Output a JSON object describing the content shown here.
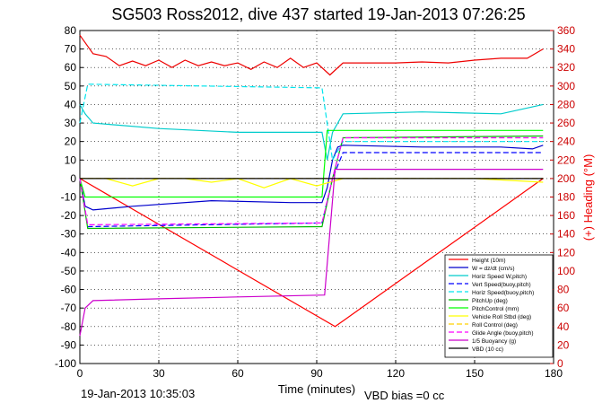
{
  "chart_data": {
    "type": "line",
    "title": "SG503 Ross2012, dive 437 started 19-Jan-2013 07:26:25",
    "xlabel": "Time (minutes)",
    "ylabel_right": "(+) Heading (°M)",
    "xlim": [
      0,
      180
    ],
    "ylim_left": [
      -100,
      80
    ],
    "ylim_right": [
      0,
      360
    ],
    "x_ticks": [
      "0",
      "30",
      "60",
      "90",
      "120",
      "150",
      "180"
    ],
    "y_ticks_left": [
      "80",
      "70",
      "60",
      "50",
      "40",
      "30",
      "20",
      "10",
      "0",
      "-10",
      "-20",
      "-30",
      "-40",
      "-50",
      "-60",
      "-70",
      "-80",
      "-90",
      "-100"
    ],
    "y_ticks_right": [
      "360",
      "340",
      "320",
      "300",
      "280",
      "260",
      "240",
      "220",
      "200",
      "180",
      "160",
      "140",
      "120",
      "100",
      "80",
      "60",
      "40",
      "20",
      "0"
    ],
    "grid": true,
    "legend_position": "bottom-right",
    "footer_left": "19-Jan-2013 10:35:03",
    "footer_right": "VBD bias =0 cc",
    "colors": {
      "height": "#ff0000",
      "w": "#0000cc",
      "horz_w": "#00cccc",
      "vert_buoy": "#0000ff",
      "horz_buoy": "#00e5ee",
      "pitch_up": "#00bb00",
      "pitch_control": "#00ff00",
      "vehicle_roll": "#ffff00",
      "roll_control": "#ffd000",
      "glide_angle": "#ff00ff",
      "buoyancy": "#cc00cc",
      "vbd": "#000000",
      "heading": "#ee0000"
    },
    "series": [
      {
        "name": "Height (10m)",
        "key": "height",
        "style": "solid",
        "x": [
          0,
          97,
          176
        ],
        "y": [
          0,
          -80,
          0
        ]
      },
      {
        "name": "W = dz/dt (cm/s)",
        "key": "w",
        "style": "solid",
        "x": [
          0,
          2,
          5,
          20,
          50,
          80,
          92,
          94,
          96,
          98,
          100,
          130,
          160,
          172,
          176
        ],
        "y": [
          0,
          -15,
          -17,
          -15,
          -12,
          -13,
          -13,
          -5,
          10,
          17,
          18,
          17,
          17,
          16,
          18
        ]
      },
      {
        "name": "Horiz Speed W,pitch)",
        "key": "horz_w",
        "style": "solid",
        "x": [
          0,
          2,
          5,
          30,
          60,
          92,
          94,
          96,
          100,
          130,
          160,
          176
        ],
        "y": [
          40,
          35,
          30,
          27,
          25,
          25,
          10,
          25,
          35,
          36,
          35,
          40
        ]
      },
      {
        "name": "Vert Speed(buoy,pitch)",
        "key": "vert_buoy",
        "style": "dashed",
        "x": [
          0,
          3,
          92,
          96,
          100,
          176
        ],
        "y": [
          0,
          -26,
          -24,
          0,
          14,
          14
        ]
      },
      {
        "name": "Horiz Speed(buoy,pitch)",
        "key": "horz_buoy",
        "style": "dashed",
        "x": [
          0,
          3,
          92,
          96,
          100,
          176
        ],
        "y": [
          30,
          51,
          49,
          10,
          20,
          20
        ]
      },
      {
        "name": "PitchUp (deg)",
        "key": "pitch_up",
        "style": "solid",
        "x": [
          0,
          3,
          92,
          96,
          100,
          176
        ],
        "y": [
          0,
          -27,
          -26,
          0,
          22,
          23
        ]
      },
      {
        "name": "PitchControl (mm)",
        "key": "pitch_control",
        "style": "solid",
        "x": [
          0,
          2,
          92,
          94,
          176
        ],
        "y": [
          0,
          -10,
          -10,
          26,
          26
        ]
      },
      {
        "name": "Vehicle Roll Stbd (deg)",
        "key": "vehicle_roll",
        "style": "solid",
        "x": [
          0,
          10,
          20,
          30,
          40,
          50,
          60,
          70,
          80,
          90,
          100,
          120,
          150,
          176
        ],
        "y": [
          0,
          0,
          -4,
          0,
          0,
          -2,
          0,
          -5,
          0,
          -4,
          0,
          0,
          0,
          -2
        ]
      },
      {
        "name": "Roll Control (deg)",
        "key": "roll_control",
        "style": "dashed",
        "x": [
          0,
          92,
          96,
          176
        ],
        "y": [
          0,
          0,
          0,
          0
        ]
      },
      {
        "name": "Glide Angle (buoy,pitch)",
        "key": "glide_angle",
        "style": "dashed",
        "x": [
          0,
          3,
          92,
          96,
          100,
          176
        ],
        "y": [
          0,
          -25,
          -24,
          0,
          22,
          22
        ]
      },
      {
        "name": "1/5 Buoyancy (g)",
        "key": "buoyancy",
        "style": "solid",
        "x": [
          0,
          2,
          5,
          30,
          60,
          93,
          97,
          176
        ],
        "y": [
          -85,
          -70,
          -66,
          -65,
          -64,
          -63,
          5,
          5
        ]
      },
      {
        "name": "VBD (10 cc)",
        "key": "vbd",
        "style": "solid",
        "x": [
          0,
          176
        ],
        "y": [
          0,
          0
        ]
      }
    ],
    "heading": {
      "name": "Heading",
      "axis": "right",
      "x": [
        0,
        5,
        10,
        15,
        20,
        25,
        30,
        35,
        40,
        45,
        50,
        55,
        60,
        65,
        70,
        75,
        80,
        85,
        90,
        95,
        100,
        110,
        120,
        130,
        140,
        150,
        160,
        170,
        176
      ],
      "y": [
        355,
        335,
        332,
        322,
        327,
        322,
        328,
        320,
        328,
        322,
        326,
        322,
        325,
        318,
        326,
        320,
        330,
        320,
        325,
        312,
        325,
        325,
        325,
        326,
        325,
        328,
        330,
        330,
        340
      ]
    }
  }
}
